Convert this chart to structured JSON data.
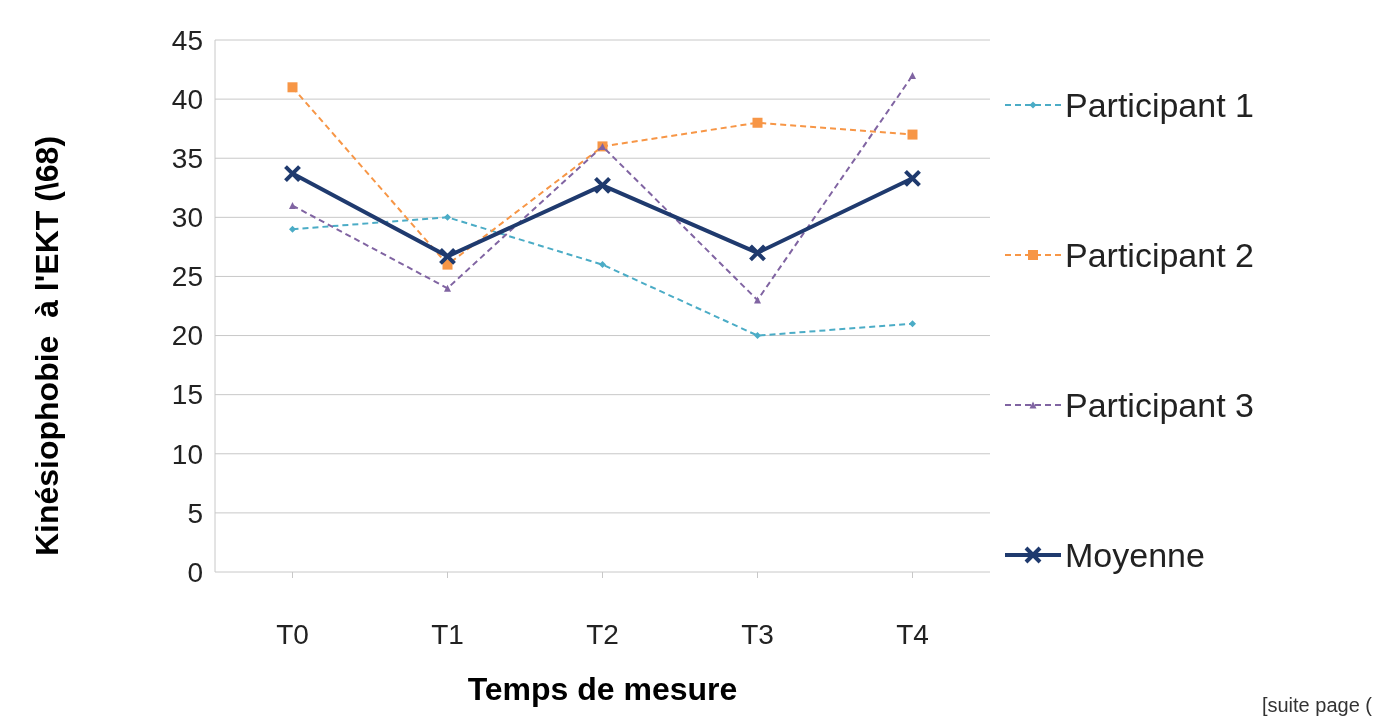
{
  "chart_data": {
    "type": "line",
    "xlabel": "Temps de mesure",
    "ylabel": "Kinésiophobie  à l'EKT (\\68)",
    "categories": [
      "T0",
      "T1",
      "T2",
      "T3",
      "T4"
    ],
    "series": [
      {
        "name": "Participant 1",
        "color": "#4bacc6",
        "values": [
          29,
          30,
          26,
          20,
          21
        ],
        "marker": "diamond",
        "line_style": "dashed"
      },
      {
        "name": "Participant 2",
        "color": "#f79646",
        "values": [
          41,
          26,
          36,
          38,
          37
        ],
        "marker": "square",
        "line_style": "dashed"
      },
      {
        "name": "Participant 3",
        "color": "#8064a2",
        "values": [
          31,
          24,
          36,
          23,
          42
        ],
        "marker": "triangle",
        "line_style": "dashed"
      },
      {
        "name": "Moyenne",
        "color": "#1f3a6e",
        "values": [
          33.7,
          26.7,
          32.7,
          27,
          33.3
        ],
        "marker": "cross",
        "line_style": "solid"
      }
    ],
    "ylim": [
      0,
      45
    ],
    "yticks": [
      0,
      5,
      10,
      15,
      20,
      25,
      30,
      35,
      40,
      45
    ],
    "grid": "y",
    "legend": "right",
    "annotations": [
      "[suite page ("
    ]
  }
}
